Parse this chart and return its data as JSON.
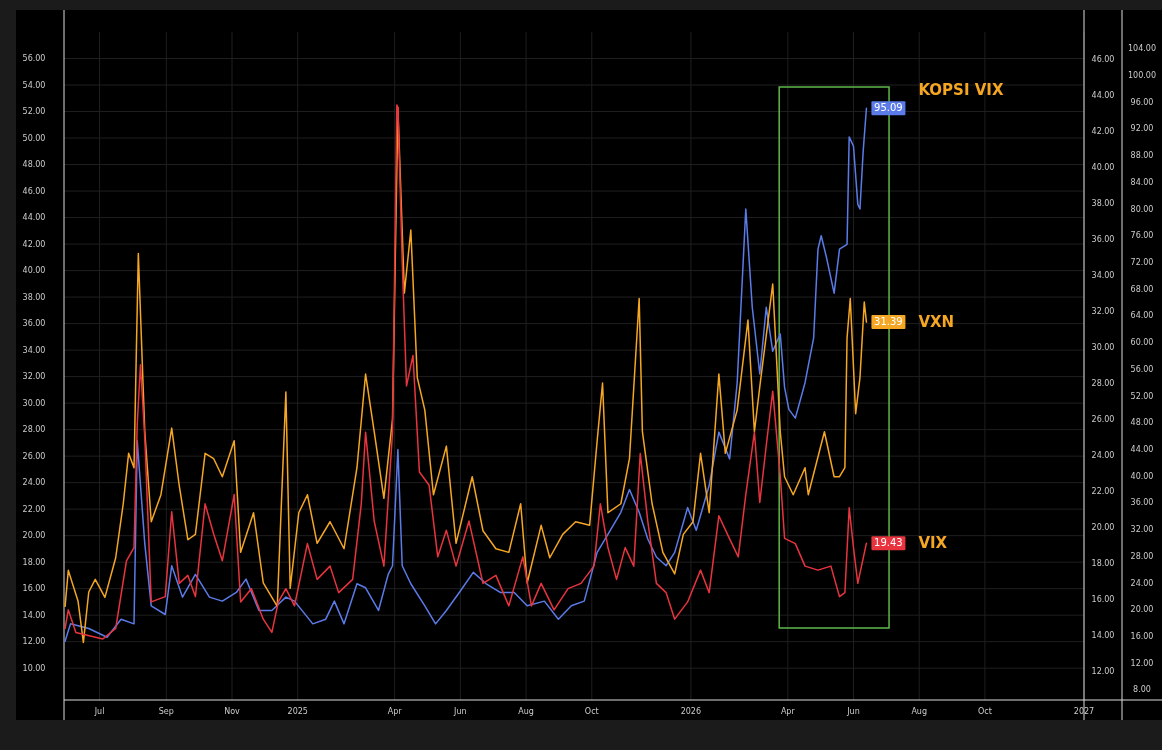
{
  "chart_data": {
    "type": "line",
    "xlim": [
      "2024-05-29",
      "2027-01-01"
    ],
    "xticks": [
      {
        "value": "2024-07-01",
        "label": "Jul"
      },
      {
        "value": "2024-09-01",
        "label": "Sep"
      },
      {
        "value": "2024-11-01",
        "label": "Nov"
      },
      {
        "value": "2025-01-01",
        "label": "2025"
      },
      {
        "value": "2025-04-01",
        "label": "Apr"
      },
      {
        "value": "2025-06-01",
        "label": "Jun"
      },
      {
        "value": "2025-08-01",
        "label": "Aug"
      },
      {
        "value": "2025-10-01",
        "label": "Oct"
      },
      {
        "value": "2026-01-01",
        "label": "2026"
      },
      {
        "value": "2026-04-01",
        "label": "Apr"
      },
      {
        "value": "2026-06-01",
        "label": "Jun"
      },
      {
        "value": "2026-08-01",
        "label": "Aug"
      },
      {
        "value": "2026-10-01",
        "label": "Oct"
      },
      {
        "value": "2027-01-01",
        "label": "2027"
      }
    ],
    "ylim": [
      7.6,
      58.0
    ],
    "yticks": [
      {
        "value": 10,
        "label": "10.00"
      },
      {
        "value": 12,
        "label": "12.00"
      },
      {
        "value": 14,
        "label": "14.00"
      },
      {
        "value": 16,
        "label": "16.00"
      },
      {
        "value": 18,
        "label": "18.00"
      },
      {
        "value": 20,
        "label": "20.00"
      },
      {
        "value": 22,
        "label": "22.00"
      },
      {
        "value": 24,
        "label": "24.00"
      },
      {
        "value": 26,
        "label": "26.00"
      },
      {
        "value": 28,
        "label": "28.00"
      },
      {
        "value": 30,
        "label": "30.00"
      },
      {
        "value": 32,
        "label": "32.00"
      },
      {
        "value": 34,
        "label": "34.00"
      },
      {
        "value": 36,
        "label": "36.00"
      },
      {
        "value": 38,
        "label": "38.00"
      },
      {
        "value": 40,
        "label": "40.00"
      },
      {
        "value": 42,
        "label": "42.00"
      },
      {
        "value": 44,
        "label": "44.00"
      },
      {
        "value": 46,
        "label": "46.00"
      },
      {
        "value": 48,
        "label": "48.00"
      },
      {
        "value": 50,
        "label": "50.00"
      },
      {
        "value": 52,
        "label": "52.00"
      },
      {
        "value": 54,
        "label": "54.00"
      },
      {
        "value": 56,
        "label": "56.00"
      }
    ],
    "y2lim": [
      10.4,
      47.5
    ],
    "y2ticks": [
      {
        "value": 12,
        "label": "12.00"
      },
      {
        "value": 14,
        "label": "14.00"
      },
      {
        "value": 16,
        "label": "16.00"
      },
      {
        "value": 18,
        "label": "18.00"
      },
      {
        "value": 20,
        "label": "20.00"
      },
      {
        "value": 22,
        "label": "22.00"
      },
      {
        "value": 24,
        "label": "24.00"
      },
      {
        "value": 26,
        "label": "26.00"
      },
      {
        "value": 28,
        "label": "28.00"
      },
      {
        "value": 30,
        "label": "30.00"
      },
      {
        "value": 32,
        "label": "32.00"
      },
      {
        "value": 34,
        "label": "34.00"
      },
      {
        "value": 36,
        "label": "36.00"
      },
      {
        "value": 38,
        "label": "38.00"
      },
      {
        "value": 40,
        "label": "40.00"
      },
      {
        "value": 42,
        "label": "42.00"
      },
      {
        "value": 44,
        "label": "44.00"
      },
      {
        "value": 46,
        "label": "46.00"
      }
    ],
    "y3lim": [
      6.5,
      106.5
    ],
    "y3ticks": [
      {
        "value": 8,
        "label": "8.00"
      },
      {
        "value": 12,
        "label": "12.00"
      },
      {
        "value": 16,
        "label": "16.00"
      },
      {
        "value": 20,
        "label": "20.00"
      },
      {
        "value": 24,
        "label": "24.00"
      },
      {
        "value": 28,
        "label": "28.00"
      },
      {
        "value": 32,
        "label": "32.00"
      },
      {
        "value": 36,
        "label": "36.00"
      },
      {
        "value": 40,
        "label": "40.00"
      },
      {
        "value": 44,
        "label": "44.00"
      },
      {
        "value": 48,
        "label": "48.00"
      },
      {
        "value": 52,
        "label": "52.00"
      },
      {
        "value": 56,
        "label": "56.00"
      },
      {
        "value": 60,
        "label": "60.00"
      },
      {
        "value": 64,
        "label": "64.00"
      },
      {
        "value": 68,
        "label": "68.00"
      },
      {
        "value": 72,
        "label": "72.00"
      },
      {
        "value": 76,
        "label": "76.00"
      },
      {
        "value": 80,
        "label": "80.00"
      },
      {
        "value": 84,
        "label": "84.00"
      },
      {
        "value": 88,
        "label": "88.00"
      },
      {
        "value": 92,
        "label": "92.00"
      },
      {
        "value": 96,
        "label": "96.00"
      },
      {
        "value": 100,
        "label": "100.00"
      },
      {
        "value": 104,
        "label": "104.00"
      }
    ],
    "grid": true,
    "legend": "right",
    "series": [
      {
        "name": "KOPSI VIX",
        "color": "#5b7be8",
        "axis": "y3",
        "x": [
          "2024-05-30",
          "2024-06-04",
          "2024-06-21",
          "2024-07-08",
          "2024-07-21",
          "2024-08-02",
          "2024-08-05",
          "2024-08-12",
          "2024-08-18",
          "2024-08-31",
          "2024-09-06",
          "2024-09-16",
          "2024-09-28",
          "2024-10-11",
          "2024-10-23",
          "2024-11-05",
          "2024-11-14",
          "2024-11-26",
          "2024-12-08",
          "2024-12-21",
          "2024-12-29",
          "2025-01-15",
          "2025-01-27",
          "2025-02-04",
          "2025-02-13",
          "2025-02-25",
          "2025-03-05",
          "2025-03-17",
          "2025-03-26",
          "2025-03-30",
          "2025-04-04",
          "2025-04-08",
          "2025-04-16",
          "2025-04-29",
          "2025-05-09",
          "2025-05-19",
          "2025-05-31",
          "2025-06-13",
          "2025-06-25",
          "2025-07-08",
          "2025-07-21",
          "2025-08-02",
          "2025-08-18",
          "2025-08-31",
          "2025-09-12",
          "2025-09-24",
          "2025-10-06",
          "2025-10-16",
          "2025-10-28",
          "2025-11-05",
          "2025-11-14",
          "2025-11-22",
          "2025-11-30",
          "2025-12-09",
          "2025-12-17",
          "2025-12-29",
          "2026-01-06",
          "2026-01-18",
          "2026-01-27",
          "2026-02-06",
          "2026-02-13",
          "2026-02-21",
          "2026-02-27",
          "2026-03-06",
          "2026-03-12",
          "2026-03-18",
          "2026-03-25",
          "2026-03-29",
          "2026-04-02",
          "2026-04-08",
          "2026-04-17",
          "2026-04-25",
          "2026-04-29",
          "2026-05-02",
          "2026-05-07",
          "2026-05-14",
          "2026-05-19",
          "2026-05-26",
          "2026-05-28",
          "2026-06-01",
          "2026-06-05",
          "2026-06-07",
          "2026-06-10",
          "2026-06-13"
        ],
        "values": [
          15.3,
          17.9,
          17.2,
          15.9,
          18.6,
          17.9,
          45.3,
          29.9,
          20.6,
          19.3,
          26.6,
          21.9,
          25.3,
          21.9,
          21.3,
          22.6,
          24.6,
          19.9,
          19.9,
          21.9,
          21.3,
          17.9,
          18.6,
          21.3,
          17.9,
          23.9,
          23.3,
          19.9,
          25.3,
          26.6,
          44.0,
          26.6,
          23.9,
          20.6,
          17.9,
          19.9,
          22.6,
          25.6,
          23.9,
          22.6,
          22.6,
          20.6,
          21.3,
          18.6,
          20.6,
          21.3,
          28.6,
          31.3,
          34.6,
          38.0,
          34.6,
          30.6,
          27.9,
          26.6,
          28.6,
          35.3,
          31.9,
          38.6,
          46.6,
          42.6,
          54.0,
          80.0,
          65.3,
          55.3,
          65.3,
          58.7,
          61.3,
          53.3,
          50.0,
          48.7,
          54.0,
          60.7,
          74.0,
          76.0,
          72.7,
          67.4,
          74.0,
          74.7,
          90.8,
          89.4,
          80.7,
          80.0,
          88.7,
          95.09
        ],
        "value_labels": [
          null,
          null,
          null,
          null,
          null,
          null,
          null,
          null,
          null,
          null,
          null,
          null,
          null,
          null,
          null,
          null,
          null,
          null,
          null,
          null,
          null,
          null,
          null,
          null,
          null,
          null,
          null,
          null,
          null,
          null,
          null,
          null,
          null,
          null,
          null,
          null,
          null,
          null,
          null,
          null,
          null,
          null,
          null,
          null,
          null,
          null,
          null,
          null,
          null,
          null,
          null,
          null,
          null,
          null,
          null,
          null,
          null,
          null,
          null,
          null,
          null,
          null,
          null,
          null,
          null,
          null,
          null,
          null,
          null,
          null,
          null,
          null,
          null,
          null,
          null,
          null,
          null,
          null,
          null,
          null,
          null,
          null,
          null,
          "95.09"
        ]
      },
      {
        "name": "VXN",
        "color": "#f5a623",
        "axis": "y2",
        "x": [
          "2024-05-30",
          "2024-06-02",
          "2024-06-11",
          "2024-06-16",
          "2024-06-21",
          "2024-06-27",
          "2024-07-06",
          "2024-07-16",
          "2024-07-23",
          "2024-07-28",
          "2024-08-02",
          "2024-08-06",
          "2024-08-12",
          "2024-08-18",
          "2024-08-27",
          "2024-09-06",
          "2024-09-13",
          "2024-09-21",
          "2024-09-28",
          "2024-10-07",
          "2024-10-15",
          "2024-10-23",
          "2024-11-03",
          "2024-11-09",
          "2024-11-21",
          "2024-11-30",
          "2024-12-13",
          "2024-12-21",
          "2024-12-25",
          "2025-01-02",
          "2025-01-10",
          "2025-01-19",
          "2025-01-31",
          "2025-02-13",
          "2025-02-25",
          "2025-03-05",
          "2025-03-13",
          "2025-03-22",
          "2025-03-30",
          "2025-04-04",
          "2025-04-10",
          "2025-04-16",
          "2025-04-22",
          "2025-04-29",
          "2025-05-07",
          "2025-05-19",
          "2025-05-28",
          "2025-06-12",
          "2025-06-22",
          "2025-07-04",
          "2025-07-16",
          "2025-07-27",
          "2025-08-02",
          "2025-08-15",
          "2025-08-23",
          "2025-09-04",
          "2025-09-16",
          "2025-09-29",
          "2025-10-06",
          "2025-10-11",
          "2025-10-16",
          "2025-10-28",
          "2025-11-05",
          "2025-11-14",
          "2025-11-17",
          "2025-11-26",
          "2025-12-06",
          "2025-12-17",
          "2025-12-25",
          "2026-01-03",
          "2026-01-10",
          "2026-01-18",
          "2026-01-27",
          "2026-02-02",
          "2026-02-13",
          "2026-02-23",
          "2026-03-01",
          "2026-03-06",
          "2026-03-18",
          "2026-03-25",
          "2026-03-29",
          "2026-04-06",
          "2026-04-17",
          "2026-04-20",
          "2026-05-05",
          "2026-05-14",
          "2026-05-19",
          "2026-05-24",
          "2026-05-26",
          "2026-05-29",
          "2026-06-03",
          "2026-06-07",
          "2026-06-11",
          "2026-06-13"
        ],
        "values": [
          15.6,
          17.6,
          15.9,
          13.6,
          16.4,
          17.1,
          16.1,
          18.3,
          21.3,
          24.1,
          23.3,
          35.2,
          25.3,
          20.3,
          21.8,
          25.5,
          22.3,
          19.3,
          19.6,
          24.1,
          23.8,
          22.8,
          24.8,
          18.6,
          20.8,
          16.9,
          15.6,
          27.5,
          16.6,
          20.8,
          21.8,
          19.1,
          20.3,
          18.8,
          23.3,
          28.5,
          25.3,
          21.6,
          26.0,
          43.3,
          33.0,
          36.5,
          28.3,
          26.5,
          21.8,
          24.5,
          19.1,
          22.8,
          19.8,
          18.8,
          18.6,
          21.3,
          16.9,
          20.1,
          18.3,
          19.6,
          20.3,
          20.1,
          24.8,
          28.0,
          20.8,
          21.3,
          23.8,
          32.7,
          25.3,
          21.3,
          18.6,
          17.4,
          19.6,
          20.3,
          24.1,
          20.8,
          28.5,
          24.1,
          26.5,
          31.5,
          25.3,
          27.8,
          33.5,
          25.3,
          22.8,
          21.8,
          23.3,
          21.8,
          25.3,
          22.8,
          22.8,
          23.3,
          30.5,
          32.7,
          26.3,
          28.3,
          32.5,
          31.39
        ],
        "value_labels": [
          null,
          null,
          null,
          null,
          null,
          null,
          null,
          null,
          null,
          null,
          null,
          null,
          null,
          null,
          null,
          null,
          null,
          null,
          null,
          null,
          null,
          null,
          null,
          null,
          null,
          null,
          null,
          null,
          null,
          null,
          null,
          null,
          null,
          null,
          null,
          null,
          null,
          null,
          null,
          null,
          null,
          null,
          null,
          null,
          null,
          null,
          null,
          null,
          null,
          null,
          null,
          null,
          null,
          null,
          null,
          null,
          null,
          null,
          null,
          null,
          null,
          null,
          null,
          null,
          null,
          null,
          null,
          null,
          null,
          null,
          null,
          null,
          null,
          null,
          null,
          null,
          null,
          null,
          null,
          null,
          null,
          null,
          null,
          null,
          null,
          null,
          null,
          null,
          null,
          null,
          null,
          null,
          null,
          "31.39"
        ]
      },
      {
        "name": "VIX",
        "color": "#e8343f",
        "x": [
          "2024-05-30",
          "2024-06-02",
          "2024-06-09",
          "2024-07-04",
          "2024-07-16",
          "2024-07-26",
          "2024-08-02",
          "2024-08-05",
          "2024-08-08",
          "2024-08-12",
          "2024-08-18",
          "2024-08-31",
          "2024-09-06",
          "2024-09-13",
          "2024-09-21",
          "2024-09-28",
          "2024-10-07",
          "2024-10-15",
          "2024-10-23",
          "2024-11-03",
          "2024-11-09",
          "2024-11-19",
          "2024-11-30",
          "2024-12-08",
          "2024-12-14",
          "2024-12-21",
          "2024-12-29",
          "2025-01-10",
          "2025-01-19",
          "2025-01-31",
          "2025-02-08",
          "2025-02-21",
          "2025-03-01",
          "2025-03-05",
          "2025-03-13",
          "2025-03-22",
          "2025-03-30",
          "2025-04-03",
          "2025-04-04",
          "2025-04-08",
          "2025-04-12",
          "2025-04-18",
          "2025-04-24",
          "2025-05-03",
          "2025-05-11",
          "2025-05-19",
          "2025-05-28",
          "2025-06-09",
          "2025-06-22",
          "2025-07-04",
          "2025-07-16",
          "2025-07-29",
          "2025-08-06",
          "2025-08-15",
          "2025-08-27",
          "2025-09-09",
          "2025-09-21",
          "2025-10-03",
          "2025-10-09",
          "2025-10-16",
          "2025-10-24",
          "2025-11-01",
          "2025-11-09",
          "2025-11-15",
          "2025-11-22",
          "2025-11-30",
          "2025-12-09",
          "2025-12-17",
          "2025-12-29",
          "2026-01-10",
          "2026-01-18",
          "2026-01-27",
          "2026-02-04",
          "2026-02-14",
          "2026-02-21",
          "2026-03-01",
          "2026-03-06",
          "2026-03-12",
          "2026-03-18",
          "2026-03-25",
          "2026-03-29",
          "2026-04-08",
          "2026-04-17",
          "2026-04-29",
          "2026-05-11",
          "2026-05-19",
          "2026-05-24",
          "2026-05-28",
          "2026-06-01",
          "2026-06-05",
          "2026-06-13"
        ],
        "values": [
          13.0,
          14.4,
          12.7,
          12.2,
          13.0,
          18.1,
          19.1,
          28.4,
          32.9,
          27.4,
          15.0,
          15.4,
          21.8,
          16.4,
          17.0,
          15.4,
          22.4,
          20.1,
          18.1,
          23.1,
          15.0,
          16.0,
          13.7,
          12.7,
          15.0,
          16.0,
          14.7,
          19.4,
          16.7,
          17.7,
          15.7,
          16.7,
          22.4,
          27.8,
          21.1,
          17.7,
          27.8,
          52.5,
          52.3,
          40.7,
          31.3,
          33.6,
          24.8,
          23.8,
          18.4,
          20.4,
          17.7,
          21.1,
          16.4,
          17.0,
          14.7,
          18.4,
          14.7,
          16.4,
          14.4,
          16.0,
          16.4,
          17.7,
          22.4,
          19.1,
          16.7,
          19.1,
          17.7,
          26.2,
          21.1,
          16.4,
          15.7,
          13.7,
          15.0,
          17.4,
          15.7,
          21.5,
          20.1,
          18.4,
          23.1,
          27.8,
          22.5,
          26.8,
          30.9,
          24.5,
          19.8,
          19.4,
          17.7,
          17.4,
          17.7,
          15.4,
          15.7,
          22.1,
          19.1,
          16.4,
          19.43
        ],
        "value_labels": [
          null,
          null,
          null,
          null,
          null,
          null,
          null,
          null,
          null,
          null,
          null,
          null,
          null,
          null,
          null,
          null,
          null,
          null,
          null,
          null,
          null,
          null,
          null,
          null,
          null,
          null,
          null,
          null,
          null,
          null,
          null,
          null,
          null,
          null,
          null,
          null,
          null,
          null,
          null,
          null,
          null,
          null,
          null,
          null,
          null,
          null,
          null,
          null,
          null,
          null,
          null,
          null,
          null,
          null,
          null,
          null,
          null,
          null,
          null,
          null,
          null,
          null,
          null,
          null,
          null,
          null,
          null,
          null,
          null,
          null,
          null,
          null,
          null,
          null,
          null,
          null,
          null,
          null,
          null,
          null,
          null,
          null,
          null,
          null,
          null,
          null,
          null,
          null,
          null,
          null,
          "19.43"
        ]
      }
    ]
  }
}
